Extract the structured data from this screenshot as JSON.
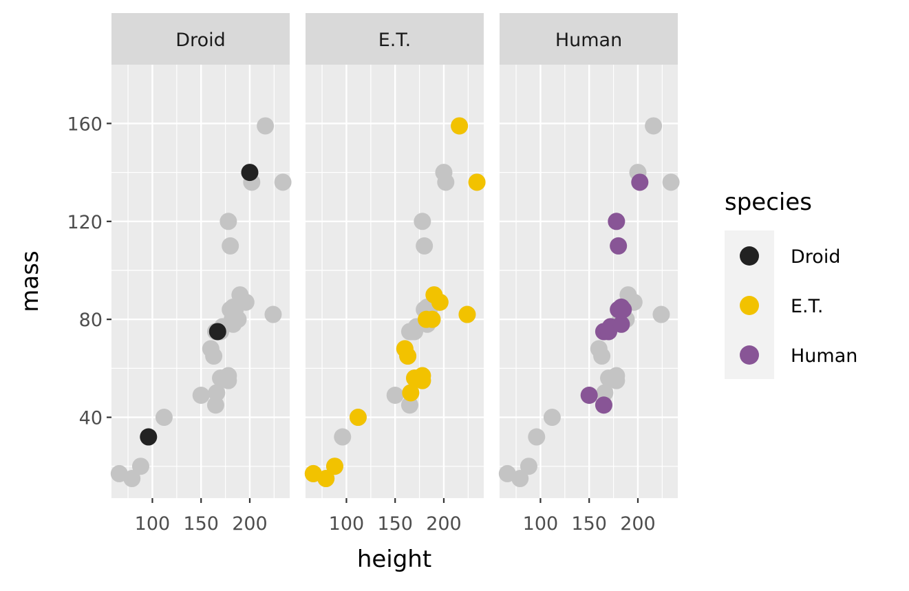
{
  "chart_data": {
    "type": "scatter",
    "xlabel": "height",
    "ylabel": "mass",
    "xlim": [
      58,
      241
    ],
    "ylim": [
      7,
      184
    ],
    "x_ticks": [
      100,
      150,
      200
    ],
    "x_minor": [
      75,
      125,
      175,
      225
    ],
    "y_ticks": [
      40,
      80,
      120,
      160
    ],
    "y_minor": [
      20,
      60,
      100,
      140
    ],
    "x_tick_labels": [
      "100",
      "150",
      "200"
    ],
    "y_tick_labels": [
      "40",
      "80",
      "120",
      "160"
    ],
    "panels": [
      "Droid",
      "E.T.",
      "Human"
    ],
    "legend": {
      "title": "species",
      "placement": "right",
      "entries": [
        {
          "label": "Droid",
          "color": "#222222"
        },
        {
          "label": "E.T.",
          "color": "#f2c200"
        },
        {
          "label": "Human",
          "color": "#885596"
        }
      ]
    },
    "background_color": "#c4c4c4",
    "grid": true,
    "panel_bg": "#ebebeb",
    "strip_bg": "#d9d9d9",
    "points": [
      {
        "x": 66,
        "y": 17,
        "s": "E.T."
      },
      {
        "x": 79,
        "y": 15,
        "s": "E.T."
      },
      {
        "x": 88,
        "y": 20,
        "s": "E.T."
      },
      {
        "x": 96,
        "y": 32,
        "s": "Droid"
      },
      {
        "x": 112,
        "y": 40,
        "s": "E.T."
      },
      {
        "x": 150,
        "y": 49,
        "s": "Human"
      },
      {
        "x": 165,
        "y": 45,
        "s": "Human"
      },
      {
        "x": 166,
        "y": 50,
        "s": "E.T."
      },
      {
        "x": 170,
        "y": 56,
        "s": "E.T."
      },
      {
        "x": 178,
        "y": 57,
        "s": "E.T."
      },
      {
        "x": 178,
        "y": 55,
        "s": "E.T."
      },
      {
        "x": 163,
        "y": 65,
        "s": "E.T."
      },
      {
        "x": 160,
        "y": 68,
        "s": "E.T."
      },
      {
        "x": 167,
        "y": 75,
        "s": "Droid"
      },
      {
        "x": 165,
        "y": 75,
        "s": "Human"
      },
      {
        "x": 170,
        "y": 75,
        "s": "Human"
      },
      {
        "x": 172,
        "y": 77,
        "s": "Human"
      },
      {
        "x": 183,
        "y": 78,
        "s": "Human"
      },
      {
        "x": 182,
        "y": 80,
        "s": "E.T."
      },
      {
        "x": 188,
        "y": 80,
        "s": "E.T."
      },
      {
        "x": 180,
        "y": 84,
        "s": "Human"
      },
      {
        "x": 183,
        "y": 85,
        "s": "Human"
      },
      {
        "x": 185,
        "y": 84,
        "s": "Human"
      },
      {
        "x": 190,
        "y": 90,
        "s": "E.T."
      },
      {
        "x": 196,
        "y": 87,
        "s": "E.T."
      },
      {
        "x": 224,
        "y": 82,
        "s": "E.T."
      },
      {
        "x": 178,
        "y": 120,
        "s": "Human"
      },
      {
        "x": 180,
        "y": 110,
        "s": "Human"
      },
      {
        "x": 200,
        "y": 140,
        "s": "Droid"
      },
      {
        "x": 202,
        "y": 136,
        "s": "Human"
      },
      {
        "x": 234,
        "y": 136,
        "s": "E.T."
      },
      {
        "x": 216,
        "y": 159,
        "s": "E.T."
      }
    ]
  }
}
